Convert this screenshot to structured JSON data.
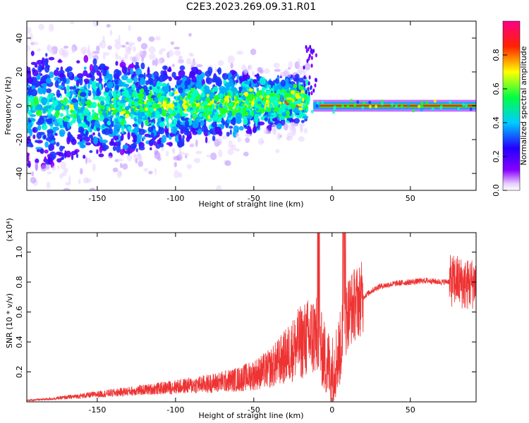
{
  "title": "C2E3.2023.269.09.31.R01",
  "chart_data": [
    {
      "type": "heatmap",
      "xlabel": "Height of straight line (km)",
      "ylabel": "Frequency (Hz)",
      "xlim": [
        -195,
        92
      ],
      "ylim": [
        -50,
        50
      ],
      "x_ticks": [
        -150,
        -100,
        -50,
        0,
        50
      ],
      "y_ticks": [
        -40,
        -20,
        0,
        20,
        40
      ],
      "colorbar": {
        "label": "Normalized spectral amplitude",
        "range": [
          0.0,
          1.0
        ],
        "ticks": [
          0.0,
          0.2,
          0.4,
          0.6,
          0.8
        ],
        "colormap": "rainbow (purple-blue-cyan-green-yellow-red-magenta)"
      },
      "features": [
        {
          "description": "broad scattered spectral energy",
          "x_range": [
            -195,
            -15
          ],
          "center_freq": 0,
          "spread_hz": [
            45,
            8
          ]
        },
        {
          "description": "narrow strong band",
          "x_range": [
            -10,
            92
          ],
          "center_freq": 0,
          "spread_hz": 2
        }
      ]
    },
    {
      "type": "line",
      "xlabel": "Height of straight line (km)",
      "ylabel": "SNR (10 * v/v)",
      "y_multiplier": "(x10⁴)",
      "xlim": [
        -195,
        92
      ],
      "ylim": [
        0,
        1.13
      ],
      "x_ticks": [
        -150,
        -100,
        -50,
        0,
        50
      ],
      "y_ticks": [
        0.2,
        0.4,
        0.6,
        0.8,
        1.0
      ],
      "color": "#ee3333",
      "series": [
        {
          "x": [
            -195,
            -180,
            -160,
            -140,
            -120,
            -100,
            -80,
            -60,
            -50,
            -40,
            -30,
            -20,
            -10,
            -5,
            0,
            5,
            10,
            15,
            20,
            25,
            30,
            40,
            50,
            60,
            70,
            80,
            85,
            92
          ],
          "values": [
            0.01,
            0.02,
            0.04,
            0.06,
            0.08,
            0.1,
            0.12,
            0.15,
            0.18,
            0.22,
            0.3,
            0.4,
            0.45,
            0.3,
            0.2,
            0.35,
            0.6,
            0.66,
            0.7,
            0.74,
            0.77,
            0.79,
            0.8,
            0.81,
            0.8,
            0.81,
            0.78,
            0.8
          ]
        }
      ]
    }
  ]
}
